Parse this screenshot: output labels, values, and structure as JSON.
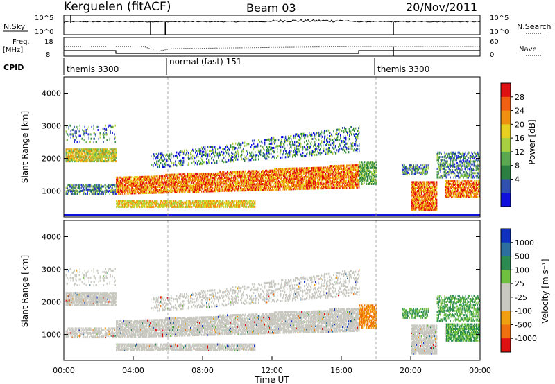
{
  "header": {
    "station": "Kerguelen (fitACF)",
    "beam": "Beam 03",
    "date": "20/Nov/2011"
  },
  "panel_labels": {
    "nsky": "N.Sky",
    "nsearch": "N.Search",
    "freq": "Freq.",
    "mhz": "[MHz]",
    "nave": "Nave",
    "cpid": "CPID"
  },
  "cpid_modes": [
    {
      "label": "themis 3300",
      "start_hour": 0,
      "end_hour": 6
    },
    {
      "label": "normal (fast) 151",
      "start_hour": 6,
      "end_hour": 18
    },
    {
      "label": "themis 3300",
      "start_hour": 18,
      "end_hour": 24
    }
  ],
  "chart_data": [
    {
      "type": "line",
      "name": "noise-panel",
      "left_ticks": [
        "10^5",
        "10^0"
      ],
      "right_ticks": [
        "10^5",
        "10^0"
      ],
      "dropouts_hour": [
        5.0,
        5.85,
        19.0
      ]
    },
    {
      "type": "line",
      "name": "frequency-nave-panel",
      "left_ticks": [
        "18",
        "8"
      ],
      "right_ticks": [
        "60",
        "0"
      ],
      "frequency_steps": [
        {
          "start_hour": 0,
          "end_hour": 3,
          "value": 12
        },
        {
          "start_hour": 3,
          "end_hour": 17,
          "value": 10
        },
        {
          "start_hour": 17,
          "end_hour": 24,
          "value": 12
        }
      ]
    },
    {
      "type": "heatmap",
      "name": "power-panel",
      "ylabel": "Slant Range [km]",
      "yticks": [
        "4000",
        "3000",
        "2000",
        "1000"
      ],
      "ylim": [
        200,
        4500
      ],
      "xlim": [
        0,
        24
      ],
      "colorbar": {
        "label": "Power [dB]",
        "ticks": [
          "28",
          "24",
          "20",
          "16",
          "12",
          "8",
          "4"
        ]
      }
    },
    {
      "type": "heatmap",
      "name": "velocity-panel",
      "ylabel": "Slant Range [km]",
      "yticks": [
        "4000",
        "3000",
        "2000",
        "1000"
      ],
      "ylim": [
        200,
        4500
      ],
      "xlim": [
        0,
        24
      ],
      "xlabel": "Time UT",
      "xticks": [
        "00:00",
        "04:00",
        "08:00",
        "12:00",
        "16:00",
        "20:00",
        "00:00"
      ],
      "colorbar": {
        "label": "Velocity [m s⁻¹]",
        "ticks": [
          "1000",
          "500",
          "100",
          "25",
          "-25",
          "-100",
          "-500",
          "-1000"
        ]
      }
    }
  ],
  "colors": {
    "power_scale": [
      "#1010e0",
      "#3050b0",
      "#2a8040",
      "#5aa850",
      "#a8d040",
      "#e8d020",
      "#f09010",
      "#f06010",
      "#e01010"
    ],
    "velocity_scale": [
      "#1030c0",
      "#2a6fa0",
      "#2a8a50",
      "#70c040",
      "#c8c8c0",
      "#c8c8c0",
      "#f0a010",
      "#f07010",
      "#e01010"
    ],
    "ground_scatter": "#c8c8c0"
  }
}
